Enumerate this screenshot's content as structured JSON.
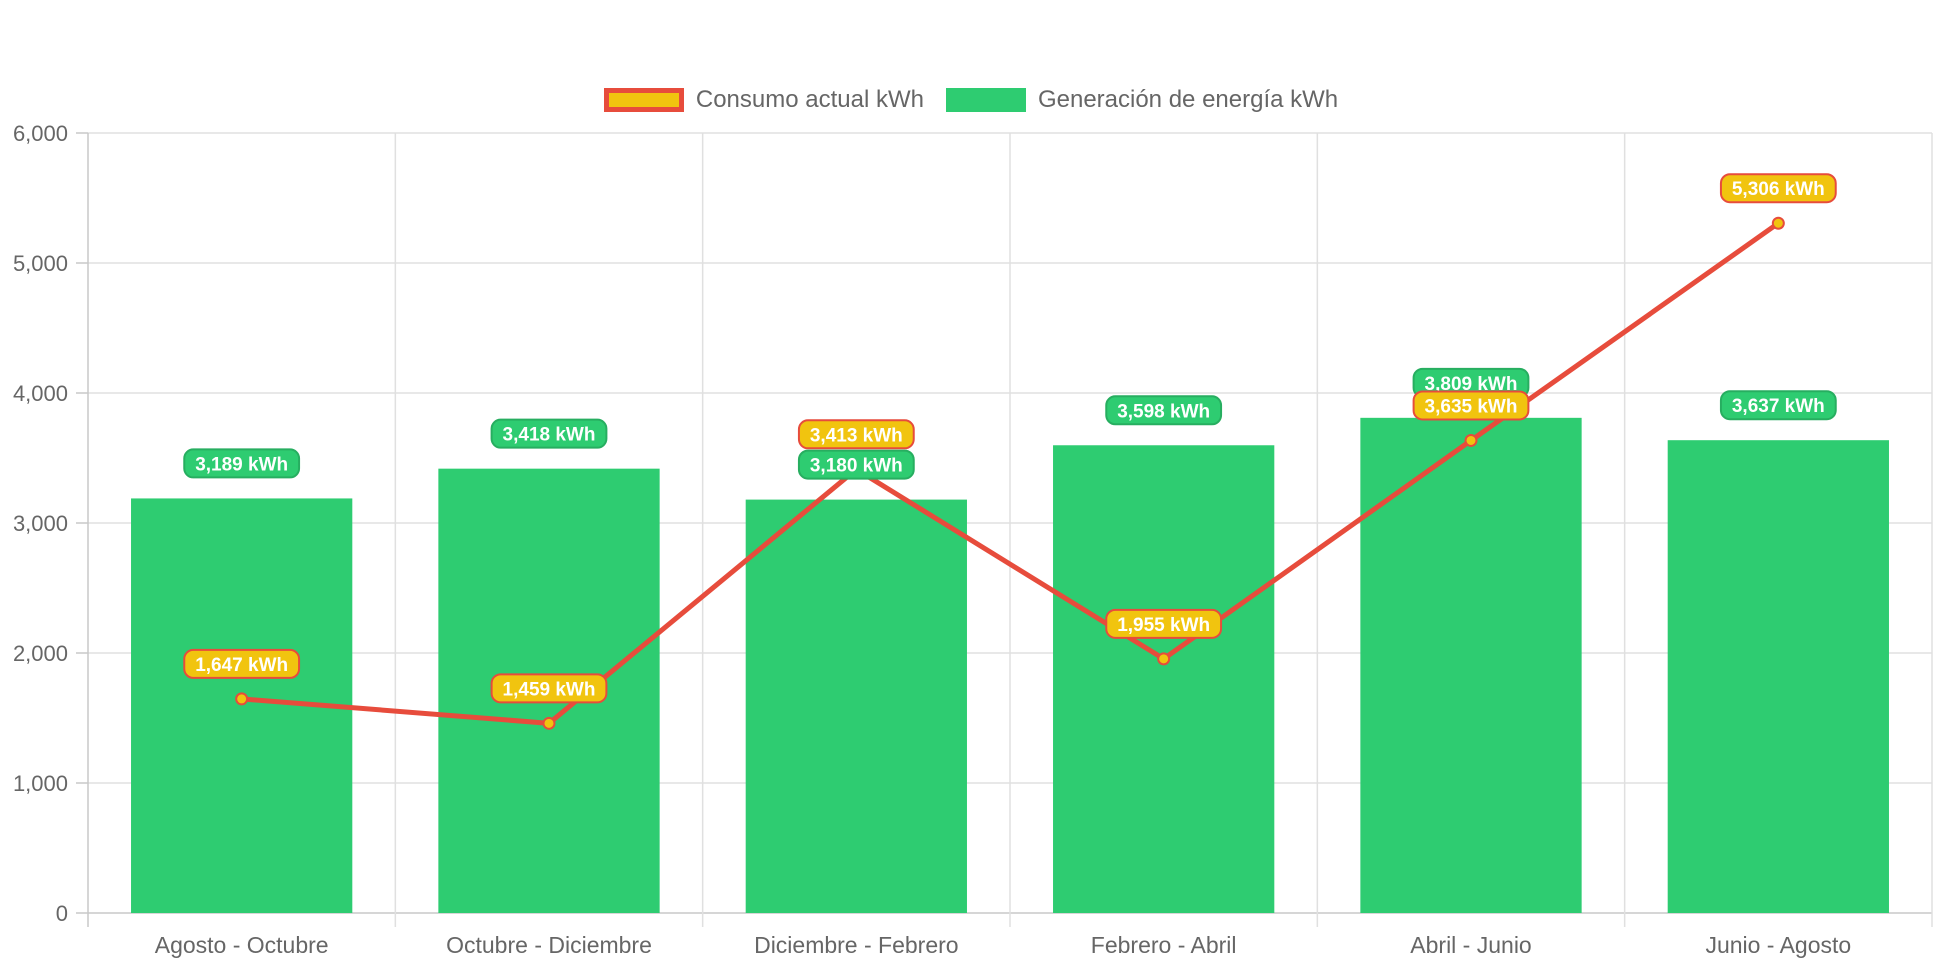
{
  "chart_data": {
    "type": "bar",
    "categories": [
      "Agosto - Octubre",
      "Octubre - Diciembre",
      "Diciembre - Febrero",
      "Febrero - Abril",
      "Abril - Junio",
      "Junio - Agosto"
    ],
    "series": [
      {
        "name": "Consumo actual kWh",
        "type": "line",
        "values": [
          1647,
          1459,
          3413,
          1955,
          3635,
          5306
        ],
        "labels": [
          "1,647 kWh",
          "1,459 kWh",
          "3,413 kWh",
          "1,955 kWh",
          "3,635 kWh",
          "5,306 kWh"
        ],
        "color": "#e74c3c",
        "fill": "#f1c40f"
      },
      {
        "name": "Generación de energía kWh",
        "type": "bar",
        "values": [
          3189,
          3418,
          3180,
          3598,
          3809,
          3637
        ],
        "labels": [
          "3,189 kWh",
          "3,418 kWh",
          "3,180 kWh",
          "3,598 kWh",
          "3,809 kWh",
          "3,637 kWh"
        ],
        "color": "#2ecc71",
        "border": "#27ae60"
      }
    ],
    "ylim": [
      0,
      6000
    ],
    "yticks": [
      "0",
      "1,000",
      "2,000",
      "3,000",
      "4,000",
      "5,000",
      "6,000"
    ],
    "grid": true,
    "legend_position": "top"
  }
}
